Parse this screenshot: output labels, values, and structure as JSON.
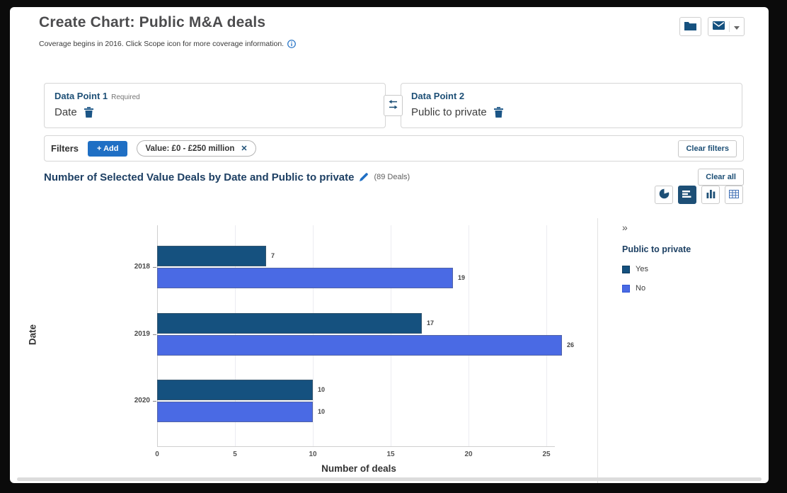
{
  "header": {
    "title": "Create Chart: Public M&A deals",
    "subtitle": "Coverage begins in 2016. Click Scope icon for more coverage information."
  },
  "toolbar": {
    "icons": [
      "folder-icon",
      "envelope-icon",
      "caret-down-icon"
    ]
  },
  "data_points": [
    {
      "label": "Data Point 1",
      "required": "Required",
      "value": "Date"
    },
    {
      "label": "Data Point 2",
      "required": "",
      "value": "Public to private"
    }
  ],
  "filters": {
    "label": "Filters",
    "add_label": "+ Add",
    "chips": [
      {
        "text": "Value: £0 - £250 million",
        "remove_glyph": "✕"
      }
    ],
    "clear_label": "Clear filters"
  },
  "chart_header": {
    "title": "Number of Selected Value Deals by Date and Public to private",
    "deal_count": "(89 Deals)",
    "clear_all_label": "Clear all"
  },
  "chart_type_buttons": [
    "pie-chart",
    "horizontal-bar-chart",
    "column-chart",
    "table-view"
  ],
  "active_chart_type": "horizontal-bar-chart",
  "legend": {
    "collapse_glyph": "»"
  },
  "colors": {
    "accent_blue": "#1f6fc4",
    "brand_navy": "#1d4f76",
    "bar_yes": "#15517f",
    "bar_no": "#4a6ae4"
  },
  "chart_data": {
    "type": "bar",
    "orientation": "horizontal",
    "title": "Number of Selected Value Deals by Date and Public to private",
    "categories": [
      "2018",
      "2019",
      "2020"
    ],
    "series": [
      {
        "name": "Yes",
        "color": "#15517f",
        "border": "#0c3a5d",
        "values": [
          7,
          17,
          10
        ]
      },
      {
        "name": "No",
        "color": "#4a6ae4",
        "border": "#2f55d4",
        "values": [
          19,
          26,
          10
        ]
      }
    ],
    "xlabel": "Number of deals",
    "ylabel": "Date",
    "xlim": [
      0,
      26
    ],
    "xticks": [
      0,
      5,
      10,
      15,
      20,
      25
    ],
    "grid": true,
    "legend_title": "Public to private",
    "legend_position": "right",
    "value_labels": true
  }
}
